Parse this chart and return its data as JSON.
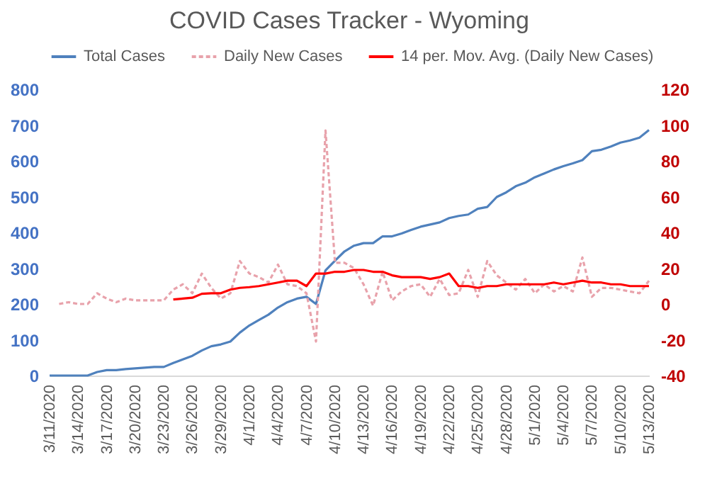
{
  "chart_data": {
    "type": "line",
    "title": "COVID Cases Tracker - Wyoming",
    "x": [
      "2020-03-11",
      "2020-03-12",
      "2020-03-13",
      "2020-03-14",
      "2020-03-15",
      "2020-03-16",
      "2020-03-17",
      "2020-03-18",
      "2020-03-19",
      "2020-03-20",
      "2020-03-21",
      "2020-03-22",
      "2020-03-23",
      "2020-03-24",
      "2020-03-25",
      "2020-03-26",
      "2020-03-27",
      "2020-03-28",
      "2020-03-29",
      "2020-03-30",
      "2020-03-31",
      "2020-04-01",
      "2020-04-02",
      "2020-04-03",
      "2020-04-04",
      "2020-04-05",
      "2020-04-06",
      "2020-04-07",
      "2020-04-08",
      "2020-04-09",
      "2020-04-10",
      "2020-04-11",
      "2020-04-12",
      "2020-04-13",
      "2020-04-14",
      "2020-04-15",
      "2020-04-16",
      "2020-04-17",
      "2020-04-18",
      "2020-04-19",
      "2020-04-20",
      "2020-04-21",
      "2020-04-22",
      "2020-04-23",
      "2020-04-24",
      "2020-04-25",
      "2020-04-26",
      "2020-04-27",
      "2020-04-28",
      "2020-04-29",
      "2020-04-30",
      "2020-05-01",
      "2020-05-02",
      "2020-05-03",
      "2020-05-04",
      "2020-05-05",
      "2020-05-06",
      "2020-05-07",
      "2020-05-08",
      "2020-05-09",
      "2020-05-10",
      "2020-05-11",
      "2020-05-12",
      "2020-05-13"
    ],
    "series": [
      {
        "name": "Total Cases",
        "color": "#4f81bd",
        "line_style": "solid",
        "values": [
          0,
          0,
          0,
          0,
          0,
          10,
          15,
          15,
          18,
          20,
          22,
          24,
          24,
          35,
          45,
          55,
          70,
          82,
          87,
          95,
          120,
          140,
          155,
          170,
          190,
          205,
          215,
          220,
          200,
          294,
          321,
          347,
          363,
          370,
          370,
          389,
          389,
          397,
          407,
          416,
          422,
          428,
          440,
          446,
          450,
          466,
          471,
          499,
          512,
          529,
          539,
          554,
          565,
          576,
          585,
          593,
          602,
          627,
          631,
          640,
          651,
          657,
          665,
          686
        ]
      },
      {
        "name": "Daily New Cases",
        "color": "#e8a2ab",
        "line_style": "dashed",
        "axis": "y2",
        "values": [
          null,
          0,
          1,
          0,
          0,
          6,
          3,
          1,
          3,
          2,
          2,
          2,
          2,
          8,
          11,
          6,
          17,
          9,
          3,
          6,
          24,
          17,
          15,
          12,
          22,
          11,
          10,
          6,
          -21,
          97,
          23,
          23,
          20,
          11,
          -1,
          18,
          2,
          7,
          10,
          11,
          4,
          14,
          5,
          6,
          19,
          4,
          24,
          16,
          12,
          8,
          14,
          6,
          11,
          7,
          10,
          7,
          26,
          4,
          9,
          9,
          8,
          7,
          6,
          13
        ]
      },
      {
        "name": "14 per. Mov. Avg. (Daily New Cases)",
        "color": "#ff0000",
        "line_style": "solid",
        "axis": "y2",
        "values": [
          null,
          null,
          null,
          null,
          null,
          null,
          null,
          null,
          null,
          null,
          null,
          null,
          null,
          2.5,
          3,
          3.5,
          5.7,
          6,
          6,
          8,
          9,
          9.4,
          10,
          11,
          12,
          13,
          13,
          10,
          17,
          17,
          18,
          18,
          19,
          19,
          18,
          18,
          16,
          15,
          15,
          15,
          14,
          15,
          17,
          10,
          10,
          9,
          10,
          10,
          11,
          11,
          11,
          11,
          11,
          12,
          11,
          12,
          13,
          12,
          12,
          11,
          11,
          10,
          10,
          10
        ]
      }
    ],
    "xlim": [
      "2020-03-11",
      "2020-05-13"
    ],
    "xticks": [
      {
        "value": "2020-03-11",
        "label": "3/11/2020"
      },
      {
        "value": "2020-03-14",
        "label": "3/14/2020"
      },
      {
        "value": "2020-03-17",
        "label": "3/17/2020"
      },
      {
        "value": "2020-03-20",
        "label": "3/20/2020"
      },
      {
        "value": "2020-03-23",
        "label": "3/23/2020"
      },
      {
        "value": "2020-03-26",
        "label": "3/26/2020"
      },
      {
        "value": "2020-03-29",
        "label": "3/29/2020"
      },
      {
        "value": "2020-04-01",
        "label": "4/1/2020"
      },
      {
        "value": "2020-04-04",
        "label": "4/4/2020"
      },
      {
        "value": "2020-04-07",
        "label": "4/7/2020"
      },
      {
        "value": "2020-04-10",
        "label": "4/10/2020"
      },
      {
        "value": "2020-04-13",
        "label": "4/13/2020"
      },
      {
        "value": "2020-04-16",
        "label": "4/16/2020"
      },
      {
        "value": "2020-04-19",
        "label": "4/19/2020"
      },
      {
        "value": "2020-04-22",
        "label": "4/22/2020"
      },
      {
        "value": "2020-04-25",
        "label": "4/25/2020"
      },
      {
        "value": "2020-04-28",
        "label": "4/28/2020"
      },
      {
        "value": "2020-05-01",
        "label": "5/1/2020"
      },
      {
        "value": "2020-05-04",
        "label": "5/4/2020"
      },
      {
        "value": "2020-05-07",
        "label": "5/7/2020"
      },
      {
        "value": "2020-05-10",
        "label": "5/10/2020"
      },
      {
        "value": "2020-05-13",
        "label": "5/13/2020"
      }
    ],
    "ylim": [
      0,
      800
    ],
    "yticks": [
      0,
      100,
      200,
      300,
      400,
      500,
      600,
      700,
      800
    ],
    "y2lim": [
      -40,
      120
    ],
    "y2ticks": [
      -40,
      -20,
      0,
      20,
      40,
      60,
      80,
      100,
      120
    ],
    "grid": false,
    "legend": "top",
    "marker": "none"
  }
}
